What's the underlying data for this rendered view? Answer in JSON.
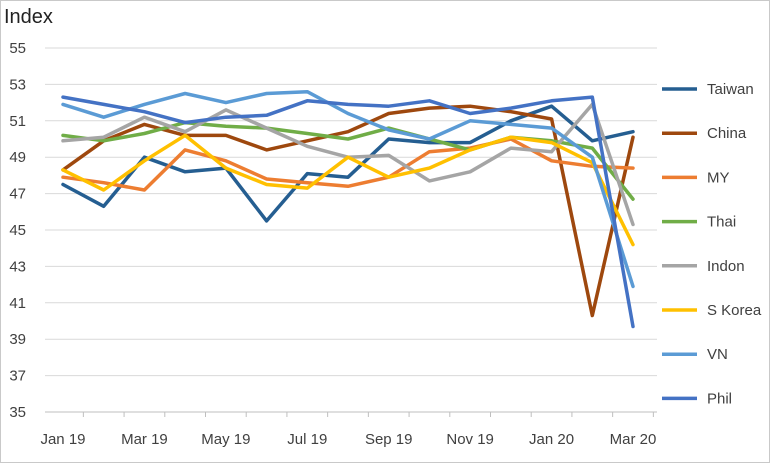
{
  "chart_data": {
    "type": "line",
    "title": "",
    "ylabel": "Index",
    "xlabel": "",
    "ylim": [
      35,
      55
    ],
    "yticks": [
      35,
      37,
      39,
      41,
      43,
      45,
      47,
      49,
      51,
      53,
      55
    ],
    "grid": "horizontal",
    "legend_position": "right",
    "x": [
      "Jan 19",
      "Feb 19",
      "Mar 19",
      "Apr 19",
      "May 19",
      "Jun 19",
      "Jul 19",
      "Aug 19",
      "Sep 19",
      "Oct 19",
      "Nov 19",
      "Dec 19",
      "Jan 20",
      "Feb 20",
      "Mar 20"
    ],
    "xtick_labels": [
      "Jan 19",
      "Mar 19",
      "May 19",
      "Jul 19",
      "Sep 19",
      "Nov 19",
      "Jan 20",
      "Mar 20"
    ],
    "xtick_indices": [
      0,
      2,
      4,
      6,
      8,
      10,
      12,
      14
    ],
    "series": [
      {
        "name": "Taiwan",
        "color": "#255e91",
        "values": [
          47.5,
          46.3,
          49.0,
          48.2,
          48.4,
          45.5,
          48.1,
          47.9,
          50.0,
          49.8,
          49.8,
          51.0,
          51.8,
          49.9,
          50.4
        ]
      },
      {
        "name": "China",
        "color": "#9e480e",
        "values": [
          48.3,
          49.9,
          50.8,
          50.2,
          50.2,
          49.4,
          49.9,
          50.4,
          51.4,
          51.7,
          51.8,
          51.5,
          51.1,
          40.3,
          50.1
        ]
      },
      {
        "name": "MY",
        "color": "#ed7d31",
        "values": [
          47.9,
          47.6,
          47.2,
          49.4,
          48.8,
          47.8,
          47.6,
          47.4,
          47.9,
          49.3,
          49.5,
          50.0,
          48.8,
          48.5,
          48.4
        ]
      },
      {
        "name": "Thai",
        "color": "#70ad47",
        "values": [
          50.2,
          49.9,
          50.3,
          50.9,
          50.7,
          50.6,
          50.3,
          50.0,
          50.6,
          50.0,
          49.4,
          50.1,
          49.9,
          49.5,
          46.7
        ]
      },
      {
        "name": "Indon",
        "color": "#a5a5a5",
        "values": [
          49.9,
          50.1,
          51.2,
          50.4,
          51.6,
          50.6,
          49.6,
          49.0,
          49.1,
          47.7,
          48.2,
          49.5,
          49.3,
          51.9,
          45.3
        ]
      },
      {
        "name": "S Korea",
        "color": "#ffc000",
        "values": [
          48.3,
          47.2,
          48.8,
          50.2,
          48.4,
          47.5,
          47.3,
          49.0,
          47.9,
          48.4,
          49.4,
          50.1,
          49.8,
          48.7,
          44.2
        ]
      },
      {
        "name": "VN",
        "color": "#5b9bd5",
        "values": [
          51.9,
          51.2,
          51.9,
          52.5,
          52.0,
          52.5,
          52.6,
          51.4,
          50.5,
          50.0,
          51.0,
          50.8,
          50.6,
          49.0,
          41.9
        ]
      },
      {
        "name": "Phil",
        "color": "#4472c4",
        "values": [
          52.3,
          51.9,
          51.5,
          50.9,
          51.2,
          51.3,
          52.1,
          51.9,
          51.8,
          52.1,
          51.4,
          51.7,
          52.1,
          52.3,
          39.7
        ]
      }
    ]
  }
}
